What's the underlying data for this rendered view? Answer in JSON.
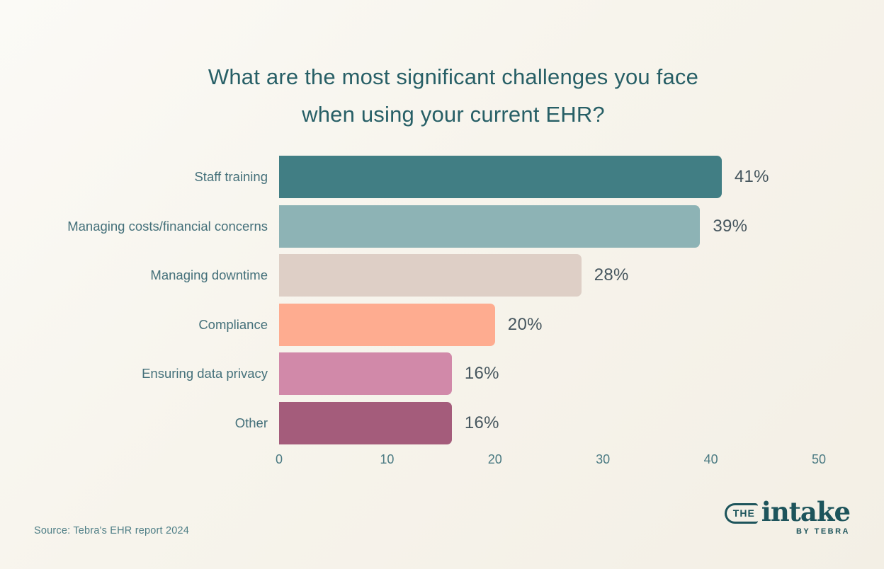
{
  "title": {
    "line1": "What are the most significant challenges you face",
    "line2": "when using your current EHR?"
  },
  "chart_data": {
    "type": "bar",
    "orientation": "horizontal",
    "title": "What are the most significant challenges you face when using your current EHR?",
    "categories": [
      "Staff training",
      "Managing costs/financial concerns",
      "Managing downtime",
      "Compliance",
      "Ensuring data privacy",
      "Other"
    ],
    "values": [
      41,
      39,
      28,
      20,
      16,
      16
    ],
    "value_labels": [
      "41%",
      "39%",
      "28%",
      "20%",
      "16%",
      "16%"
    ],
    "bar_colors": [
      "#417e84",
      "#8db3b5",
      "#decfc6",
      "#feac90",
      "#d189a9",
      "#a45c7b"
    ],
    "xlabel": "",
    "ylabel": "",
    "x_ticks": [
      0,
      10,
      20,
      30,
      40,
      50
    ],
    "xlim": [
      0,
      50
    ],
    "grid": false,
    "legend": null
  },
  "source": "Source: Tebra's EHR report 2024",
  "logo": {
    "the": "THE",
    "intake": "intake",
    "byline": "BY TEBRA"
  },
  "colors": {
    "background_top": "#fbfaf6",
    "background_bottom": "#f3efe5",
    "title_text": "#275f66",
    "category_text": "#44707a",
    "value_text": "#46565e",
    "tick_text": "#4a7a82",
    "source_text": "#4e7e86",
    "logo_text": "#1d545b"
  }
}
